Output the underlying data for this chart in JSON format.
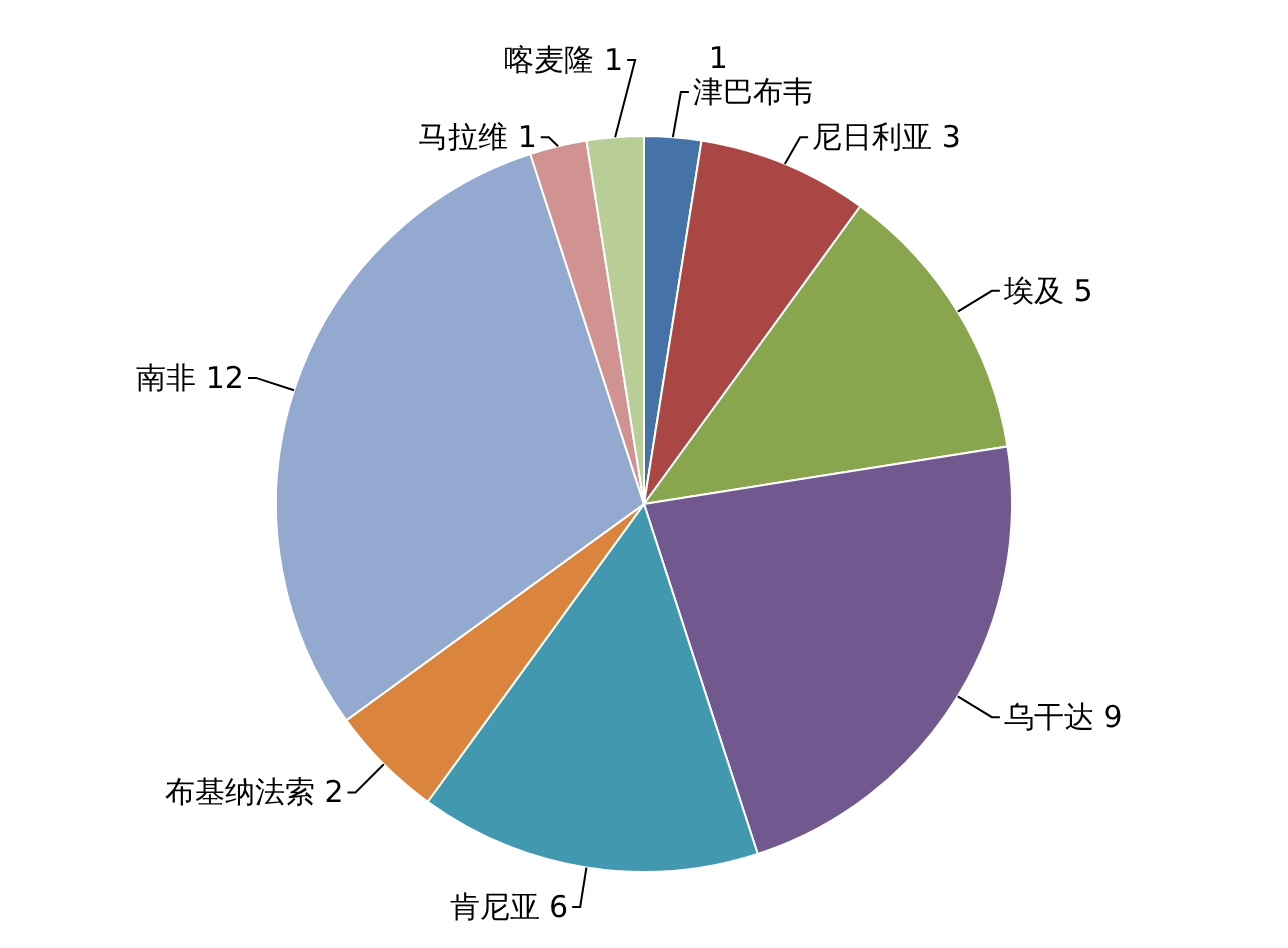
{
  "chart_data": {
    "type": "pie",
    "categories": [
      "津巴布韦",
      "尼日利亚",
      "埃及",
      "乌干达",
      "肯尼亚",
      "布基纳法索",
      "南非",
      "马拉维",
      "喀麦隆"
    ],
    "values": [
      1,
      3,
      5,
      9,
      6,
      2,
      12,
      1,
      1
    ],
    "colors": [
      "#4572a7",
      "#aa4643",
      "#89a54e",
      "#71588f",
      "#4198af",
      "#db843d",
      "#93a9cf",
      "#d19392",
      "#b9cd96"
    ],
    "data_labels": true
  }
}
